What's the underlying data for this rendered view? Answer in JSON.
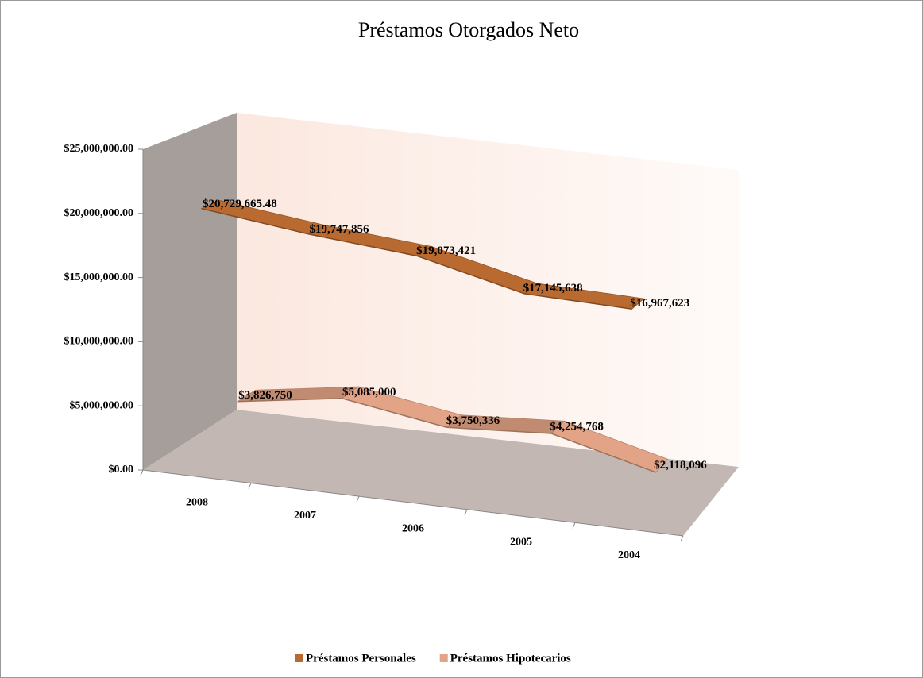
{
  "chart_data": {
    "type": "line3d",
    "title": "Préstamos Otorgados Neto",
    "categories": [
      "2008",
      "2007",
      "2006",
      "2005",
      "2004"
    ],
    "series": [
      {
        "name": "Préstamos Personales",
        "color": "#b96a31",
        "values": [
          20729665.48,
          19747856,
          19073421,
          17145638,
          16967623
        ],
        "value_labels": [
          "$20,729,665.48",
          "$19,747,856",
          "$19,073,421",
          "$17,145,638",
          "$16,967,623"
        ]
      },
      {
        "name": "Préstamos Hipotecarios",
        "color": "#e3a386",
        "values": [
          3826750,
          5085000,
          3750336,
          4254768,
          2118096
        ],
        "value_labels": [
          "$3,826,750",
          "$5,085,000",
          "$3,750,336",
          "$4,254,768",
          "$2,118,096"
        ]
      }
    ],
    "ylim": [
      0,
      25000000
    ],
    "yticks": [
      {
        "value": 0,
        "label": "$0.00"
      },
      {
        "value": 5000000,
        "label": "$5,000,000.00"
      },
      {
        "value": 10000000,
        "label": "$10,000,000.00"
      },
      {
        "value": 15000000,
        "label": "$15,000,000.00"
      },
      {
        "value": 20000000,
        "label": "$20,000,000.00"
      },
      {
        "value": 25000000,
        "label": "$25,000,000.00"
      }
    ],
    "legend": "bottom"
  }
}
